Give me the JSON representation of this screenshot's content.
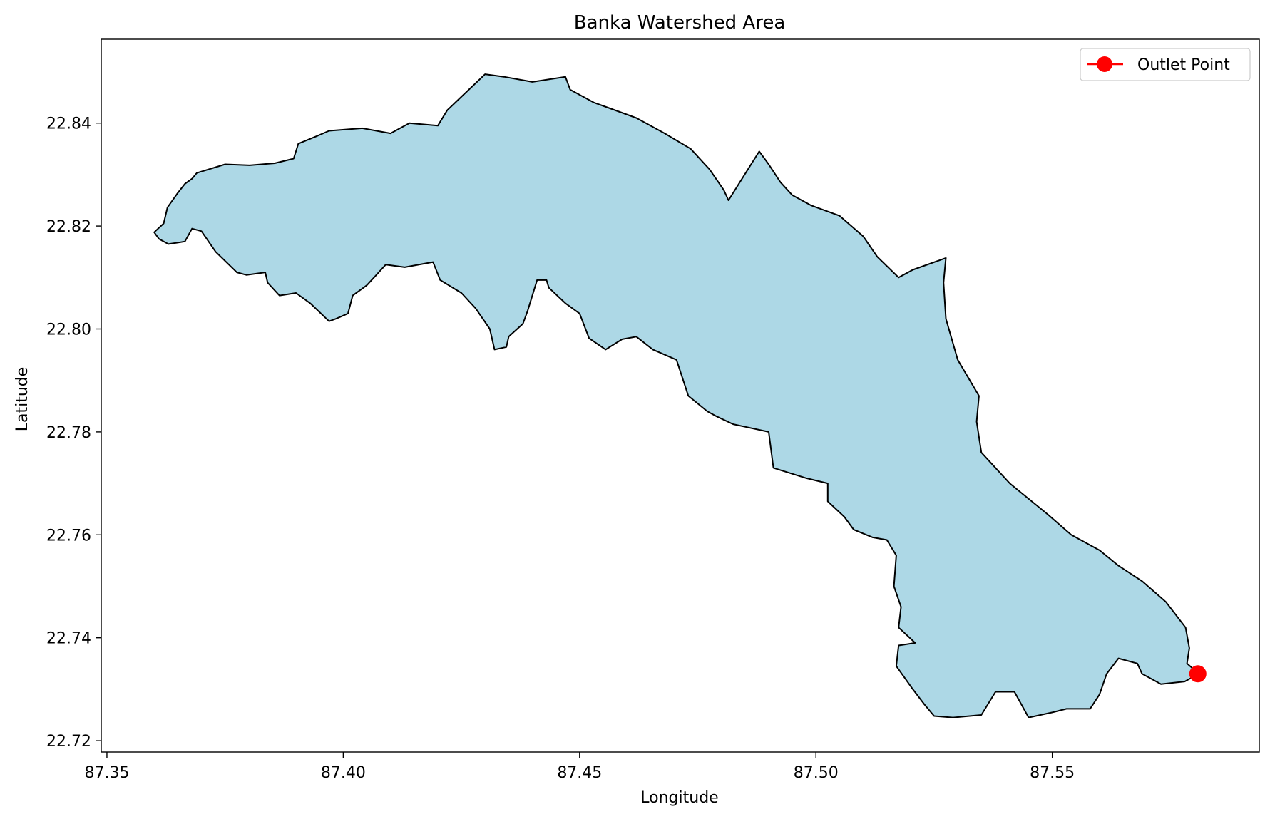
{
  "chart_data": {
    "type": "map",
    "title": "Banka Watershed Area",
    "xlabel": "Longitude",
    "ylabel": "Latitude",
    "xlim": [
      87.3488,
      87.5938
    ],
    "ylim": [
      22.7178,
      22.8563
    ],
    "xticks": [
      87.35,
      87.4,
      87.45,
      87.5,
      87.55
    ],
    "xtick_labels": [
      "87.35",
      "87.40",
      "87.45",
      "87.50",
      "87.55"
    ],
    "yticks": [
      22.72,
      22.74,
      22.76,
      22.78,
      22.8,
      22.82,
      22.84
    ],
    "ytick_labels": [
      "22.72",
      "22.74",
      "22.76",
      "22.78",
      "22.80",
      "22.82",
      "22.84"
    ],
    "watershed": {
      "fill": "#add8e6",
      "edge": "#000000",
      "boundary": [
        [
          87.36,
          22.8188
        ],
        [
          87.362,
          22.8205
        ],
        [
          87.3628,
          22.8236
        ],
        [
          87.3648,
          22.8262
        ],
        [
          87.3665,
          22.8282
        ],
        [
          87.368,
          22.8292
        ],
        [
          87.369,
          22.8303
        ],
        [
          87.375,
          22.832
        ],
        [
          87.3802,
          22.8318
        ],
        [
          87.3855,
          22.8322
        ],
        [
          87.3895,
          22.8331
        ],
        [
          87.3905,
          22.836
        ],
        [
          87.3945,
          22.8375
        ],
        [
          87.397,
          22.8385
        ],
        [
          87.404,
          22.839
        ],
        [
          87.41,
          22.838
        ],
        [
          87.414,
          22.84
        ],
        [
          87.42,
          22.8395
        ],
        [
          87.422,
          22.8425
        ],
        [
          87.426,
          22.846
        ],
        [
          87.43,
          22.8495
        ],
        [
          87.434,
          22.849
        ],
        [
          87.44,
          22.848
        ],
        [
          87.447,
          22.849
        ],
        [
          87.448,
          22.8465
        ],
        [
          87.453,
          22.844
        ],
        [
          87.456,
          22.843
        ],
        [
          87.462,
          22.841
        ],
        [
          87.468,
          22.838
        ],
        [
          87.4735,
          22.835
        ],
        [
          87.4775,
          22.831
        ],
        [
          87.4805,
          22.827
        ],
        [
          87.4815,
          22.825
        ],
        [
          87.488,
          22.8345
        ],
        [
          87.49,
          22.832
        ],
        [
          87.4925,
          22.8285
        ],
        [
          87.495,
          22.826
        ],
        [
          87.499,
          22.824
        ],
        [
          87.505,
          22.822
        ],
        [
          87.51,
          22.818
        ],
        [
          87.513,
          22.814
        ],
        [
          87.5175,
          22.81
        ],
        [
          87.5205,
          22.8115
        ],
        [
          87.5275,
          22.8138
        ],
        [
          87.527,
          22.809
        ],
        [
          87.5275,
          22.802
        ],
        [
          87.53,
          22.794
        ],
        [
          87.5345,
          22.787
        ],
        [
          87.534,
          22.782
        ],
        [
          87.535,
          22.776
        ],
        [
          87.541,
          22.77
        ],
        [
          87.549,
          22.764
        ],
        [
          87.554,
          22.76
        ],
        [
          87.56,
          22.757
        ],
        [
          87.564,
          22.754
        ],
        [
          87.569,
          22.751
        ],
        [
          87.574,
          22.747
        ],
        [
          87.5782,
          22.742
        ],
        [
          87.579,
          22.738
        ],
        [
          87.5785,
          22.735
        ],
        [
          87.581,
          22.733
        ],
        [
          87.578,
          22.7315
        ],
        [
          87.573,
          22.731
        ],
        [
          87.569,
          22.733
        ],
        [
          87.568,
          22.735
        ],
        [
          87.564,
          22.736
        ],
        [
          87.5615,
          22.733
        ],
        [
          87.56,
          22.729
        ],
        [
          87.558,
          22.7262
        ],
        [
          87.553,
          22.7262
        ],
        [
          87.55,
          22.7255
        ],
        [
          87.545,
          22.7245
        ],
        [
          87.542,
          22.7295
        ],
        [
          87.538,
          22.7295
        ],
        [
          87.535,
          22.725
        ],
        [
          87.529,
          22.7245
        ],
        [
          87.525,
          22.7248
        ],
        [
          87.523,
          22.727
        ],
        [
          87.5205,
          22.73
        ],
        [
          87.517,
          22.7345
        ],
        [
          87.5175,
          22.7385
        ],
        [
          87.521,
          22.739
        ],
        [
          87.5175,
          22.742
        ],
        [
          87.518,
          22.746
        ],
        [
          87.5165,
          22.75
        ],
        [
          87.517,
          22.756
        ],
        [
          87.515,
          22.759
        ],
        [
          87.512,
          22.7595
        ],
        [
          87.508,
          22.761
        ],
        [
          87.506,
          22.7635
        ],
        [
          87.5025,
          22.7665
        ],
        [
          87.5025,
          22.77
        ],
        [
          87.498,
          22.771
        ],
        [
          87.491,
          22.773
        ],
        [
          87.49,
          22.78
        ],
        [
          87.485,
          22.781
        ],
        [
          87.4825,
          22.7815
        ],
        [
          87.479,
          22.783
        ],
        [
          87.477,
          22.784
        ],
        [
          87.473,
          22.787
        ],
        [
          87.4705,
          22.794
        ],
        [
          87.4655,
          22.796
        ],
        [
          87.462,
          22.7985
        ],
        [
          87.459,
          22.798
        ],
        [
          87.4555,
          22.796
        ],
        [
          87.452,
          22.7982
        ],
        [
          87.45,
          22.803
        ],
        [
          87.447,
          22.805
        ],
        [
          87.4435,
          22.808
        ],
        [
          87.443,
          22.8095
        ],
        [
          87.441,
          22.8095
        ],
        [
          87.439,
          22.8035
        ],
        [
          87.438,
          22.801
        ],
        [
          87.435,
          22.7985
        ],
        [
          87.4345,
          22.7965
        ],
        [
          87.432,
          22.796
        ],
        [
          87.431,
          22.8
        ],
        [
          87.428,
          22.804
        ],
        [
          87.425,
          22.807
        ],
        [
          87.4205,
          22.8095
        ],
        [
          87.419,
          22.813
        ],
        [
          87.413,
          22.812
        ],
        [
          87.409,
          22.8125
        ],
        [
          87.4065,
          22.81
        ],
        [
          87.405,
          22.8085
        ],
        [
          87.402,
          22.8065
        ],
        [
          87.401,
          22.803
        ],
        [
          87.3985,
          22.802
        ],
        [
          87.397,
          22.8015
        ],
        [
          87.393,
          22.805
        ],
        [
          87.39,
          22.807
        ],
        [
          87.3865,
          22.8065
        ],
        [
          87.384,
          22.809
        ],
        [
          87.3835,
          22.811
        ],
        [
          87.3795,
          22.8105
        ],
        [
          87.3775,
          22.811
        ],
        [
          87.373,
          22.815
        ],
        [
          87.3715,
          22.817
        ],
        [
          87.37,
          22.819
        ],
        [
          87.368,
          22.8195
        ],
        [
          87.3665,
          22.817
        ],
        [
          87.363,
          22.8165
        ],
        [
          87.361,
          22.8175
        ],
        [
          87.36,
          22.8188
        ]
      ]
    },
    "outlet_point": {
      "lon": 87.5808,
      "lat": 22.733,
      "label": "Outlet Point",
      "color": "#ff0000"
    },
    "legend": {
      "placement": "top-right",
      "entries": [
        "Outlet Point"
      ]
    }
  }
}
